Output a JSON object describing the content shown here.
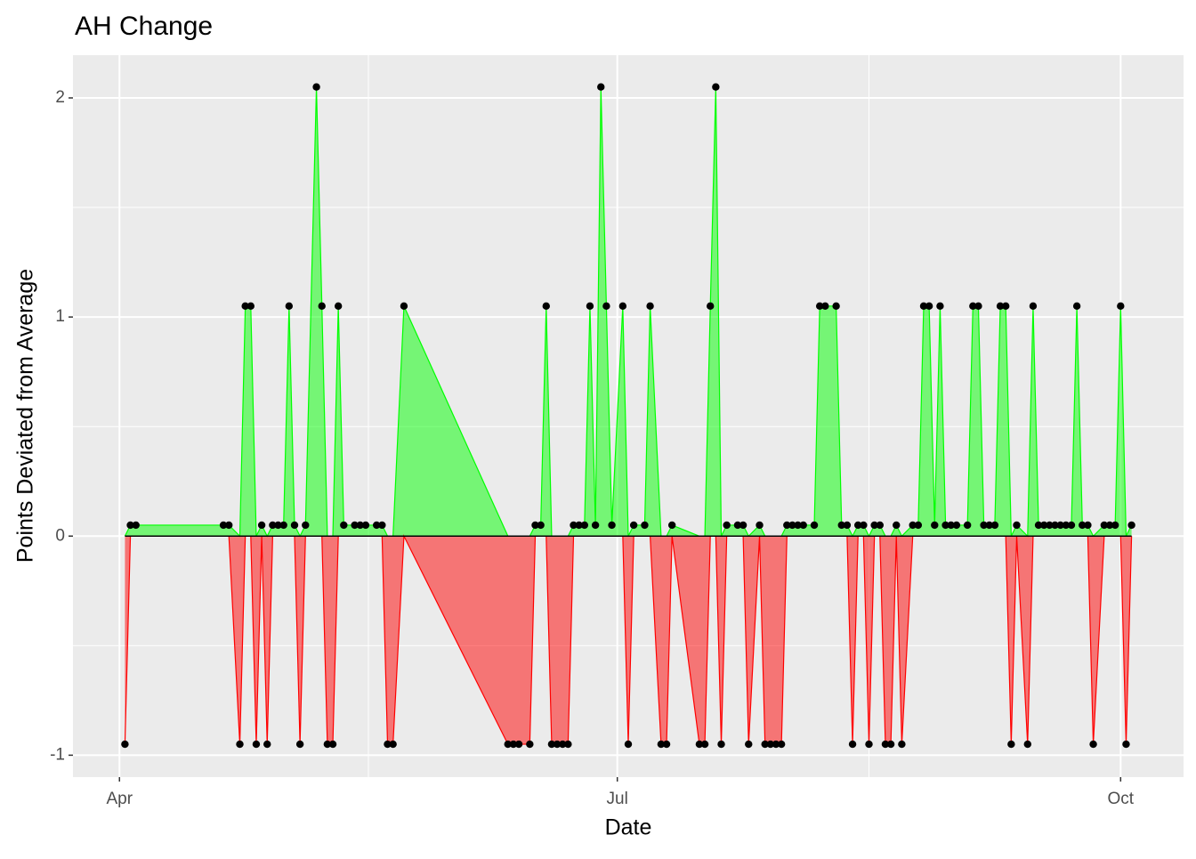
{
  "chart_data": {
    "type": "area",
    "title": "AH Change",
    "x_label": "Date",
    "y_label": "Points Deviated from Average",
    "x": [
      1,
      2,
      3,
      19,
      20,
      22,
      23,
      24,
      25,
      26,
      27,
      28,
      29,
      30,
      31,
      32,
      33,
      34,
      36,
      37,
      38,
      39,
      40,
      41,
      43,
      44,
      45,
      47,
      48,
      49,
      50,
      52,
      71,
      72,
      73,
      75,
      76,
      77,
      78,
      79,
      80,
      81,
      82,
      83,
      84,
      85,
      86,
      87,
      88,
      89,
      90,
      92,
      93,
      94,
      96,
      97,
      99,
      100,
      101,
      106,
      107,
      108,
      109,
      110,
      111,
      113,
      114,
      115,
      117,
      118,
      119,
      120,
      121,
      122,
      123,
      124,
      125,
      127,
      128,
      129,
      131,
      132,
      133,
      134,
      135,
      136,
      137,
      138,
      139,
      140,
      141,
      142,
      143,
      145,
      146,
      147,
      148,
      149,
      150,
      151,
      152,
      153,
      155,
      156,
      157,
      158,
      159,
      160,
      161,
      162,
      163,
      164,
      166,
      167,
      168,
      169,
      170,
      171,
      172,
      173,
      174,
      175,
      176,
      177,
      178,
      180,
      181,
      182,
      183,
      184,
      185
    ],
    "values": [
      -0.95,
      0.05,
      0.05,
      0.05,
      0.05,
      -0.95,
      1.05,
      1.05,
      -0.95,
      0.05,
      -0.95,
      0.05,
      0.05,
      0.05,
      1.05,
      0.05,
      -0.95,
      0.05,
      2.05,
      1.05,
      -0.95,
      -0.95,
      1.05,
      0.05,
      0.05,
      0.05,
      0.05,
      0.05,
      0.05,
      -0.95,
      -0.95,
      1.05,
      -0.95,
      -0.95,
      -0.95,
      -0.95,
      0.05,
      0.05,
      1.05,
      -0.95,
      -0.95,
      -0.95,
      -0.95,
      0.05,
      0.05,
      0.05,
      1.05,
      0.05,
      2.05,
      1.05,
      0.05,
      1.05,
      -0.95,
      0.05,
      0.05,
      1.05,
      -0.95,
      -0.95,
      0.05,
      -0.95,
      -0.95,
      1.05,
      2.05,
      -0.95,
      0.05,
      0.05,
      0.05,
      -0.95,
      0.05,
      -0.95,
      -0.95,
      -0.95,
      -0.95,
      0.05,
      0.05,
      0.05,
      0.05,
      0.05,
      1.05,
      1.05,
      1.05,
      0.05,
      0.05,
      -0.95,
      0.05,
      0.05,
      -0.95,
      0.05,
      0.05,
      -0.95,
      -0.95,
      0.05,
      -0.95,
      0.05,
      0.05,
      1.05,
      1.05,
      0.05,
      1.05,
      0.05,
      0.05,
      0.05,
      0.05,
      1.05,
      1.05,
      0.05,
      0.05,
      0.05,
      1.05,
      1.05,
      -0.95,
      0.05,
      -0.95,
      1.05,
      0.05,
      0.05,
      0.05,
      0.05,
      0.05,
      0.05,
      0.05,
      1.05,
      0.05,
      0.05,
      -0.95,
      0.05,
      0.05,
      0.05,
      1.05,
      -0.95,
      0.05
    ],
    "colors": {
      "positive": "#00ff00",
      "negative": "#ff0000",
      "points": "#000000",
      "baseline": "#000000"
    },
    "xlim": [
      -8.5,
      194.5
    ],
    "xticks": [
      {
        "value": 0,
        "label": "Apr"
      },
      {
        "value": 91,
        "label": "Jul"
      },
      {
        "value": 183,
        "label": "Oct"
      }
    ],
    "ylim": [
      -1.1,
      2.195
    ],
    "yticks": [
      -1,
      0,
      1,
      2
    ],
    "grid": true
  }
}
